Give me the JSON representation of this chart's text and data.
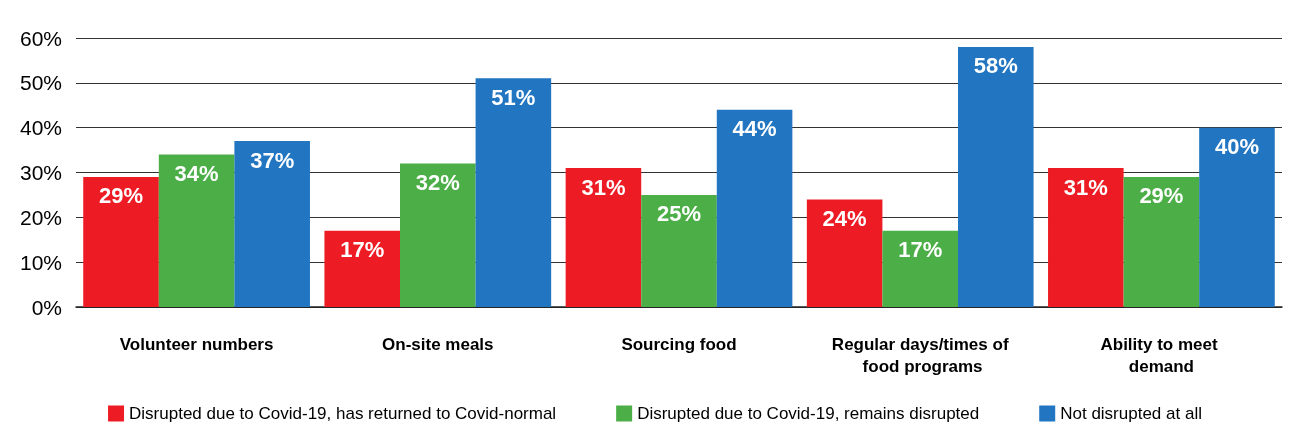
{
  "chart_data": {
    "type": "bar",
    "categories": [
      "Volunteer numbers",
      "On-site meals",
      "Sourcing food",
      "Regular days/times of food programs",
      "Ability to meet demand"
    ],
    "series": [
      {
        "name": "Disrupted due to Covid-19, has returned to Covid-normal",
        "color": "#ed1c24",
        "values": [
          29,
          17,
          31,
          24,
          31
        ],
        "value_labels": [
          "29%",
          "17%",
          "31%",
          "24%",
          "31%"
        ]
      },
      {
        "name": "Disrupted due to Covid-19, remains disrupted",
        "color": "#4cae47",
        "values": [
          34,
          32,
          25,
          17,
          29
        ],
        "value_labels": [
          "34%",
          "32%",
          "25%",
          "17%",
          "29%"
        ]
      },
      {
        "name": "Not disrupted at all",
        "color": "#2175c1",
        "values": [
          37,
          51,
          44,
          58,
          40
        ],
        "value_labels": [
          "37%",
          "51%",
          "44%",
          "58%",
          "40%"
        ]
      }
    ],
    "ylim": [
      0,
      60
    ],
    "yticks": [
      {
        "value": 0,
        "label": "0%"
      },
      {
        "value": 10,
        "label": "10%"
      },
      {
        "value": 20,
        "label": "20%"
      },
      {
        "value": 30,
        "label": "30%"
      },
      {
        "value": 40,
        "label": "40%"
      },
      {
        "value": 50,
        "label": "50%"
      },
      {
        "value": 60,
        "label": "60%"
      }
    ],
    "grid": "y",
    "legend": "bottom",
    "marker": "square"
  }
}
